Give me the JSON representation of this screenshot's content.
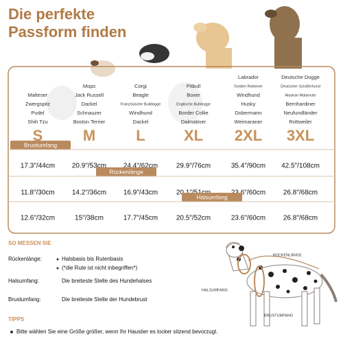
{
  "header": {
    "title_lines": [
      "Die perfekte",
      "Passform finden"
    ]
  },
  "sizes": [
    {
      "label": "S",
      "breeds": [
        "Malteser",
        "Zwergspitz",
        "Pudel",
        "Shih Tzu"
      ]
    },
    {
      "label": "M",
      "breeds": [
        "Mops",
        "Jack Russell",
        "Dackel",
        "Schnauzer",
        "Boston Terrier"
      ]
    },
    {
      "label": "L",
      "breeds": [
        "Corgi",
        "Beagle",
        "Französische Bulldogge",
        "Windhund",
        "Dackel"
      ]
    },
    {
      "label": "XL",
      "breeds": [
        "Pitbull",
        "Boxer",
        "Englische Bulldogge",
        "Border Collie",
        "Dalmatiner"
      ]
    },
    {
      "label": "2XL",
      "breeds": [
        "Labrador",
        "Golden Retriever",
        "Windhund",
        "Husky",
        "Dobermann",
        "Weimaraner"
      ]
    },
    {
      "label": "3XL",
      "breeds": [
        "Deutsche Dogge",
        "Deutscher Schäferhund",
        "Alaskan Malamute",
        "Bernhardiner",
        "Neufundländer",
        "Rottweiler"
      ]
    }
  ],
  "measurements": [
    {
      "name": "Brustumfang",
      "values": [
        "17.3\"/44cm",
        "20.9\"/53cm",
        "24.4\"/62cm",
        "29.9\"/76cm",
        "35.4\"/90cm",
        "42.5\"/108cm"
      ]
    },
    {
      "name": "Rückenlänge",
      "values": [
        "11.8\"/30cm",
        "14.2\"/36cm",
        "16.9\"/43cm",
        "20.1\"/51cm",
        "23.6\"/60cm",
        "26.8\"/68cm"
      ]
    },
    {
      "name": "Halsumfang",
      "values": [
        "12.6\"/32cm",
        "15\"/38cm",
        "17.7\"/45cm",
        "20.5\"/52cm",
        "23.6\"/60cm",
        "26.8\"/68cm"
      ]
    }
  ],
  "how_to": {
    "title": "SO MESSEN SIE",
    "items": [
      {
        "label": "Rückenlänge:",
        "lines": [
          "Halsbasis bis Rutenbasis",
          "(*die Rute ist nicht inbegriffen*)"
        ]
      },
      {
        "label": "Halsumfang:",
        "lines": [
          "Die breiteste Stelle des Hundehalses"
        ]
      },
      {
        "label": "Brustumfang:",
        "lines": [
          "Die breiteste Stelle der Hundebrust"
        ]
      }
    ]
  },
  "diagram": {
    "labels": [
      "RÜCKENLÄNGE",
      "HALSUMFANG",
      "BRUSTUMFANG"
    ]
  },
  "tips": {
    "title": "TIPPS",
    "text": "Bitte wählen Sie eine Größe größer, wenn Ihr Haustier es locker sitzend bevorzugt."
  }
}
